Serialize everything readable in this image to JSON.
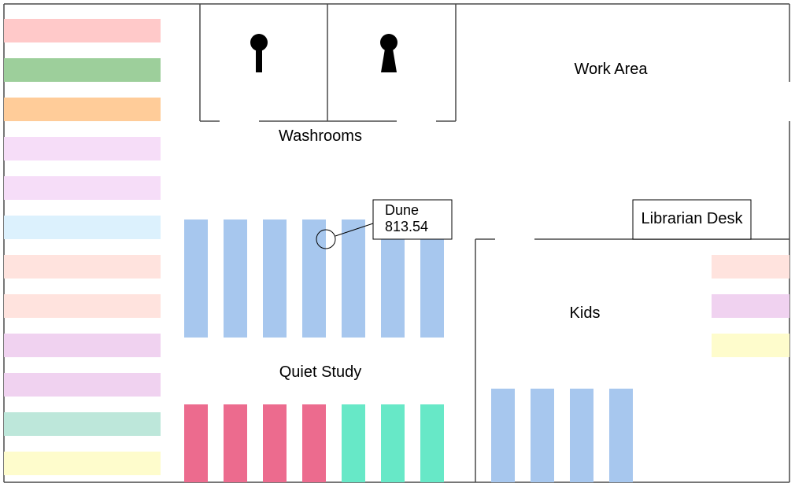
{
  "rooms": {
    "work_area": "Work Area",
    "washrooms": "Washrooms",
    "librarian_desk": "Librarian Desk",
    "kids": "Kids",
    "quiet_study": "Quiet Study"
  },
  "callout": {
    "title": "Dune",
    "call_number": "813.54"
  },
  "icons": {
    "washroom_left": "male-washroom-icon",
    "washroom_right": "female-washroom-icon"
  },
  "colors": {
    "shelf_blue": "#a7c7ee",
    "shelf_red": "#ec6b8e",
    "shelf_green": "#67e8c7",
    "wall": "#4a4a4a",
    "left_shelves": [
      "#ffc9c9",
      "#9dcf9b",
      "#ffcc99",
      "#f6ddf8",
      "#f6ddf8",
      "#dcf1fd",
      "#ffe3de",
      "#ffe3de",
      "#f0d2f0",
      "#f0d2f0",
      "#bde7da",
      "#fefccc"
    ],
    "kids_shelves": [
      "#ffe3de",
      "#f0d2f0",
      "#fefccc"
    ]
  }
}
